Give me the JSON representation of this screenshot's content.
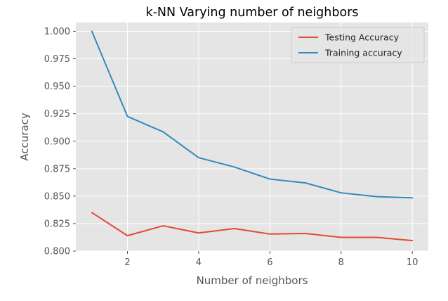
{
  "chart_data": {
    "type": "line",
    "title": "k-NN Varying number of neighbors",
    "xlabel": "Number of neighbors",
    "ylabel": "Accuracy",
    "x": [
      1,
      2,
      3,
      4,
      5,
      6,
      7,
      8,
      9,
      10
    ],
    "xlim": [
      0.55,
      10.45
    ],
    "ylim": [
      0.8,
      1.008
    ],
    "x_ticks": [
      2,
      4,
      6,
      8,
      10
    ],
    "x_tick_labels": [
      "2",
      "4",
      "6",
      "8",
      "10"
    ],
    "y_ticks": [
      0.8,
      0.825,
      0.85,
      0.875,
      0.9,
      0.925,
      0.95,
      0.975,
      1.0
    ],
    "y_tick_labels": [
      "0.800",
      "0.825",
      "0.850",
      "0.875",
      "0.900",
      "0.925",
      "0.950",
      "0.975",
      "1.000"
    ],
    "grid": true,
    "legend_position": "top-right",
    "series": [
      {
        "name": "Testing Accuracy",
        "color": "#E24A33",
        "values": [
          0.835,
          0.814,
          0.823,
          0.8165,
          0.8205,
          0.8155,
          0.816,
          0.8125,
          0.8125,
          0.8095
        ]
      },
      {
        "name": "Training accuracy",
        "color": "#348ABD",
        "values": [
          1.0,
          0.9225,
          0.9085,
          0.885,
          0.8765,
          0.8655,
          0.862,
          0.853,
          0.8495,
          0.8485
        ]
      }
    ],
    "background_color": "#E5E5E5",
    "grid_color": "#FFFFFF"
  }
}
